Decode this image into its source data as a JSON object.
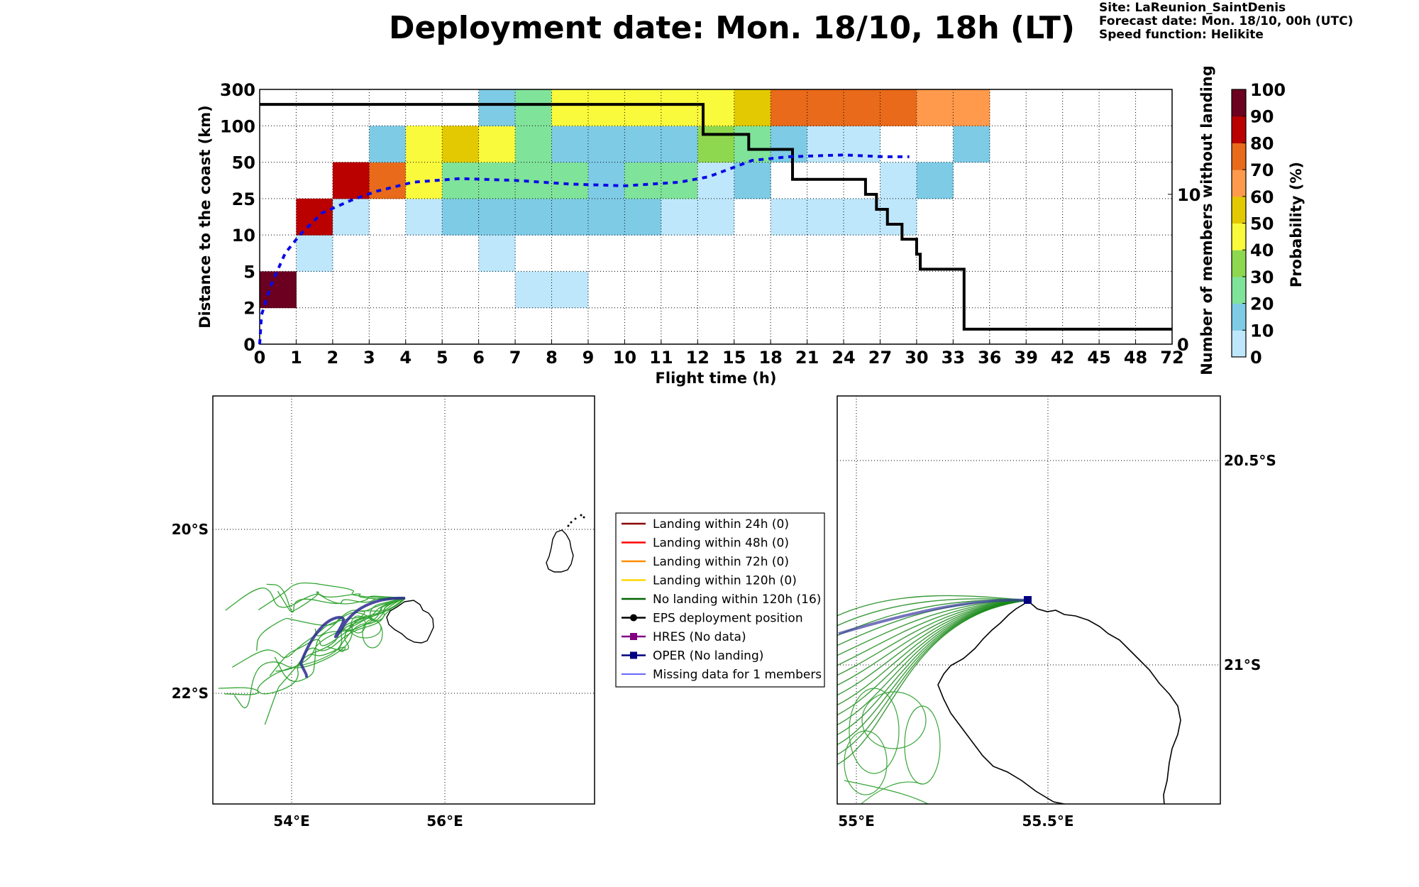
{
  "header": {
    "title": "Deployment date: Mon. 18/10, 18h (LT)",
    "site": "Site: LaReunion_SaintDenis",
    "forecast": "Forecast date: Mon. 18/10, 00h (UTC)",
    "speed": "Speed function: Helikite"
  },
  "chart_data": [
    {
      "type": "heatmap",
      "xlabel": "Flight time (h)",
      "ylabel": "Distance to the coast (km)",
      "y2label": "Number of members without landing",
      "colorbar_label": "Probability (%)",
      "x_ticks": [
        "0",
        "1",
        "2",
        "3",
        "4",
        "5",
        "6",
        "7",
        "8",
        "9",
        "10",
        "11",
        "12",
        "15",
        "18",
        "21",
        "24",
        "27",
        "30",
        "33",
        "36",
        "39",
        "42",
        "45",
        "48",
        "72"
      ],
      "y_ticks": [
        "0",
        "2",
        "5",
        "10",
        "25",
        "50",
        "100",
        "300"
      ],
      "y2_ticks": [
        "0",
        "10"
      ],
      "y2_range": [
        0,
        17
      ],
      "colorbar_ticks": [
        "0",
        "10",
        "20",
        "30",
        "40",
        "50",
        "60",
        "70",
        "80",
        "90",
        "100"
      ],
      "colorbar_colors": [
        "#bfe7fb",
        "#7ecbe6",
        "#80e39a",
        "#8ed84f",
        "#fafa3c",
        "#e3c901",
        "#ff9a4c",
        "#e86a1a",
        "#bb0000",
        "#6b0020"
      ],
      "cells": [
        {
          "x": 0,
          "y": 1,
          "p": 95
        },
        {
          "x": 1,
          "y": 2,
          "p": 5
        },
        {
          "x": 1,
          "y": 3,
          "p": 85
        },
        {
          "x": 2,
          "y": 3,
          "p": 5
        },
        {
          "x": 2,
          "y": 4,
          "p": 85
        },
        {
          "x": 3,
          "y": 4,
          "p": 75
        },
        {
          "x": 3,
          "y": 5,
          "p": 15
        },
        {
          "x": 4,
          "y": 3,
          "p": 5
        },
        {
          "x": 4,
          "y": 4,
          "p": 45
        },
        {
          "x": 4,
          "y": 5,
          "p": 45
        },
        {
          "x": 5,
          "y": 3,
          "p": 15
        },
        {
          "x": 5,
          "y": 4,
          "p": 25
        },
        {
          "x": 5,
          "y": 5,
          "p": 55
        },
        {
          "x": 6,
          "y": 2,
          "p": 5
        },
        {
          "x": 6,
          "y": 3,
          "p": 15
        },
        {
          "x": 6,
          "y": 4,
          "p": 25
        },
        {
          "x": 6,
          "y": 5,
          "p": 45
        },
        {
          "x": 6,
          "y": 6,
          "p": 15
        },
        {
          "x": 7,
          "y": 1,
          "p": 5
        },
        {
          "x": 7,
          "y": 3,
          "p": 15
        },
        {
          "x": 7,
          "y": 4,
          "p": 25
        },
        {
          "x": 7,
          "y": 5,
          "p": 25
        },
        {
          "x": 7,
          "y": 6,
          "p": 25
        },
        {
          "x": 8,
          "y": 1,
          "p": 5
        },
        {
          "x": 8,
          "y": 3,
          "p": 15
        },
        {
          "x": 8,
          "y": 4,
          "p": 25
        },
        {
          "x": 8,
          "y": 5,
          "p": 15
        },
        {
          "x": 8,
          "y": 6,
          "p": 45
        },
        {
          "x": 9,
          "y": 3,
          "p": 15
        },
        {
          "x": 9,
          "y": 4,
          "p": 15
        },
        {
          "x": 9,
          "y": 5,
          "p": 15
        },
        {
          "x": 9,
          "y": 6,
          "p": 45
        },
        {
          "x": 10,
          "y": 3,
          "p": 15
        },
        {
          "x": 10,
          "y": 4,
          "p": 25
        },
        {
          "x": 10,
          "y": 5,
          "p": 15
        },
        {
          "x": 10,
          "y": 6,
          "p": 45
        },
        {
          "x": 11,
          "y": 3,
          "p": 5
        },
        {
          "x": 11,
          "y": 4,
          "p": 25
        },
        {
          "x": 11,
          "y": 5,
          "p": 15
        },
        {
          "x": 11,
          "y": 6,
          "p": 45
        },
        {
          "x": 12,
          "y": 3,
          "p": 5
        },
        {
          "x": 12,
          "y": 4,
          "p": 5
        },
        {
          "x": 12,
          "y": 5,
          "p": 35
        },
        {
          "x": 12,
          "y": 6,
          "p": 45
        },
        {
          "x": 13,
          "y": 4,
          "p": 15
        },
        {
          "x": 13,
          "y": 5,
          "p": 25
        },
        {
          "x": 13,
          "y": 6,
          "p": 55
        },
        {
          "x": 14,
          "y": 3,
          "p": 5
        },
        {
          "x": 14,
          "y": 5,
          "p": 15
        },
        {
          "x": 14,
          "y": 6,
          "p": 75
        },
        {
          "x": 15,
          "y": 3,
          "p": 5
        },
        {
          "x": 15,
          "y": 5,
          "p": 5
        },
        {
          "x": 15,
          "y": 6,
          "p": 75
        },
        {
          "x": 16,
          "y": 3,
          "p": 5
        },
        {
          "x": 16,
          "y": 5,
          "p": 5
        },
        {
          "x": 16,
          "y": 6,
          "p": 75
        },
        {
          "x": 17,
          "y": 3,
          "p": 5
        },
        {
          "x": 17,
          "y": 4,
          "p": 5
        },
        {
          "x": 17,
          "y": 6,
          "p": 75
        },
        {
          "x": 18,
          "y": 4,
          "p": 15
        },
        {
          "x": 18,
          "y": 6,
          "p": 65
        },
        {
          "x": 19,
          "y": 5,
          "p": 15
        },
        {
          "x": 19,
          "y": 6,
          "p": 65
        }
      ],
      "series": [
        {
          "name": "members without landing",
          "type": "step",
          "color": "#000000",
          "points": [
            [
              0,
              16
            ],
            [
              12.15,
              16
            ],
            [
              12.15,
              14
            ],
            [
              13.4,
              14
            ],
            [
              13.4,
              13
            ],
            [
              14.6,
              13
            ],
            [
              14.6,
              11
            ],
            [
              16.6,
              11
            ],
            [
              16.6,
              10
            ],
            [
              16.9,
              10
            ],
            [
              16.9,
              9
            ],
            [
              17.2,
              9
            ],
            [
              17.2,
              8
            ],
            [
              17.6,
              8
            ],
            [
              17.6,
              7
            ],
            [
              18.0,
              7
            ],
            [
              18.0,
              6
            ],
            [
              18.1,
              6
            ],
            [
              18.1,
              5
            ],
            [
              19.3,
              5
            ],
            [
              19.3,
              1
            ],
            [
              25,
              1
            ]
          ]
        },
        {
          "name": "mean distance",
          "type": "dashed",
          "color": "#0a0ae6",
          "points": [
            [
              0,
              0
            ],
            [
              0.05,
              0.8
            ],
            [
              0.3,
              1.6
            ],
            [
              0.7,
              2.5
            ],
            [
              1.1,
              3.0
            ],
            [
              1.7,
              3.6
            ],
            [
              2.5,
              3.95
            ],
            [
              3.2,
              4.2
            ],
            [
              4.2,
              4.45
            ],
            [
              5.5,
              4.55
            ],
            [
              7,
              4.5
            ],
            [
              8.5,
              4.4
            ],
            [
              10,
              4.35
            ],
            [
              11.5,
              4.45
            ],
            [
              12.3,
              4.6
            ],
            [
              13.5,
              5.05
            ],
            [
              14.5,
              5.15
            ],
            [
              16,
              5.2
            ],
            [
              17.1,
              5.15
            ],
            [
              17.8,
              5.15
            ]
          ]
        }
      ]
    },
    {
      "type": "map",
      "x_ticks": [
        "54°E",
        "56°E"
      ],
      "y_ticks": [
        "20°S",
        "22°S"
      ]
    },
    {
      "type": "map",
      "x_ticks": [
        "55°E",
        "55.5°E"
      ],
      "y_ticks": [
        "20.5°S",
        "21°S"
      ]
    }
  ],
  "legend": [
    {
      "label": "Landing within 24h (0)",
      "color": "#8b0000",
      "marker": "none"
    },
    {
      "label": "Landing within 48h (0)",
      "color": "#ff0000",
      "marker": "none"
    },
    {
      "label": "Landing within 72h (0)",
      "color": "#ff8c00",
      "marker": "none"
    },
    {
      "label": "Landing within 120h (0)",
      "color": "#ffd700",
      "marker": "none"
    },
    {
      "label": "No landing within 120h (16)",
      "color": "#006400",
      "marker": "none"
    },
    {
      "label": "EPS deployment position",
      "color": "#000000",
      "marker": "circle"
    },
    {
      "label": "HRES (No data)",
      "color": "#800080",
      "marker": "square"
    },
    {
      "label": "OPER (No landing)",
      "color": "#000080",
      "marker": "square"
    },
    {
      "label": "Missing data for 1 members",
      "color": "#3333ff",
      "marker": "none"
    }
  ]
}
